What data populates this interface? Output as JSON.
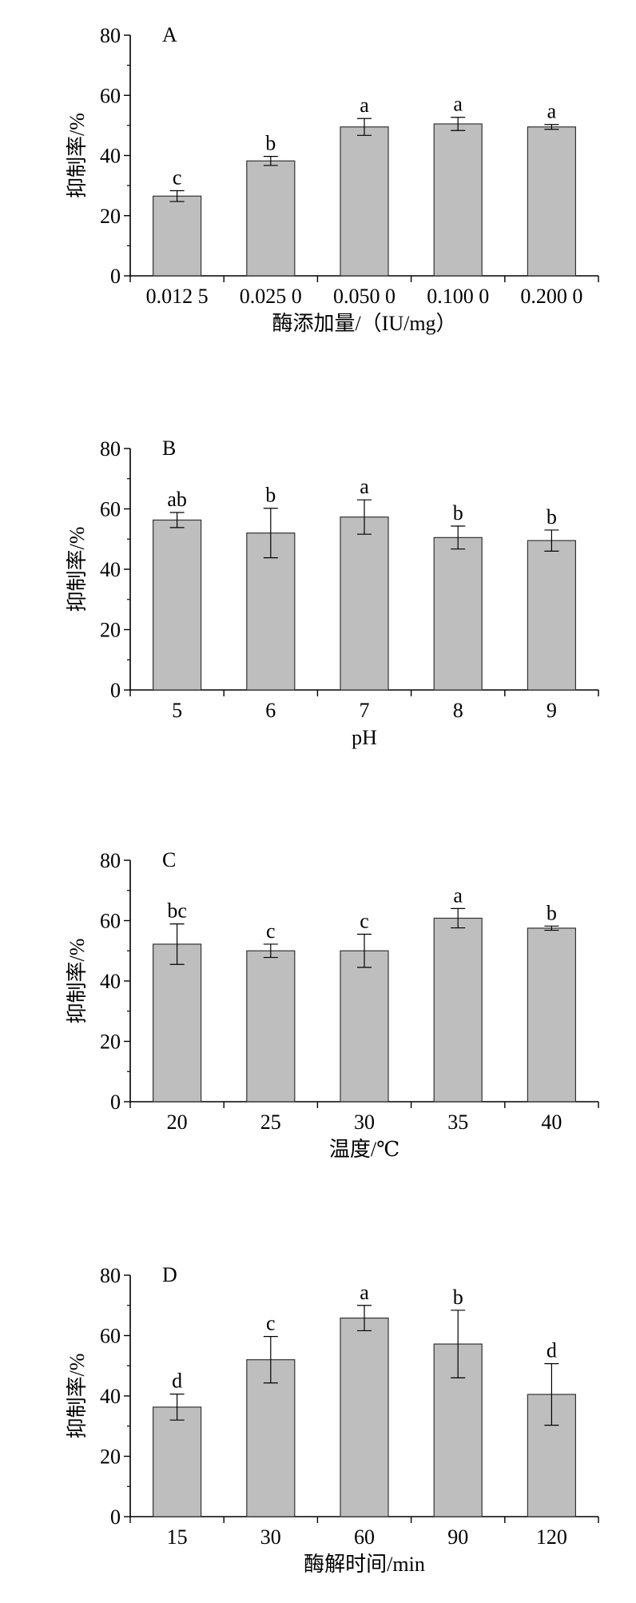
{
  "chart_data": [
    {
      "type": "bar",
      "panel_label": "A",
      "categories": [
        "0.012 5",
        "0.025 0",
        "0.050 0",
        "0.100 0",
        "0.200 0"
      ],
      "values": [
        26.5,
        38.2,
        49.5,
        50.5,
        49.5
      ],
      "errors": [
        1.8,
        1.5,
        2.8,
        2.2,
        0.8
      ],
      "letters": [
        "c",
        "b",
        "a",
        "a",
        "a"
      ],
      "xlabel": "酶添加量/（IU/mg）",
      "ylabel": "抑制率/%",
      "ylim": [
        0,
        80
      ],
      "yticks": [
        0,
        20,
        40,
        60,
        80
      ],
      "bar_color": "#bebebe",
      "grid": false
    },
    {
      "type": "bar",
      "panel_label": "B",
      "categories": [
        "5",
        "6",
        "7",
        "8",
        "9"
      ],
      "values": [
        56.3,
        52.0,
        57.3,
        50.5,
        49.5
      ],
      "errors": [
        2.5,
        8.2,
        5.7,
        3.8,
        3.5
      ],
      "letters": [
        "ab",
        "b",
        "a",
        "b",
        "b"
      ],
      "xlabel": "pH",
      "ylabel": "抑制率/%",
      "ylim": [
        0,
        80
      ],
      "yticks": [
        0,
        20,
        40,
        60,
        80
      ],
      "bar_color": "#bebebe",
      "grid": false
    },
    {
      "type": "bar",
      "panel_label": "C",
      "categories": [
        "20",
        "25",
        "30",
        "35",
        "40"
      ],
      "values": [
        52.2,
        50.0,
        50.0,
        60.8,
        57.5
      ],
      "errors": [
        6.7,
        2.2,
        5.5,
        3.2,
        0.7
      ],
      "letters": [
        "bc",
        "c",
        "c",
        "a",
        "b"
      ],
      "xlabel": "温度/℃",
      "ylabel": "抑制率/%",
      "ylim": [
        0,
        80
      ],
      "yticks": [
        0,
        20,
        40,
        60,
        80
      ],
      "bar_color": "#bebebe",
      "grid": false
    },
    {
      "type": "bar",
      "panel_label": "D",
      "categories": [
        "15",
        "30",
        "60",
        "90",
        "120"
      ],
      "values": [
        36.3,
        52.0,
        65.8,
        57.2,
        40.5
      ],
      "errors": [
        4.3,
        7.7,
        4.2,
        11.2,
        10.2
      ],
      "letters": [
        "d",
        "c",
        "a",
        "b",
        "d"
      ],
      "xlabel": "酶解时间/min",
      "ylabel": "抑制率/%",
      "ylim": [
        0,
        80
      ],
      "yticks": [
        0,
        20,
        40,
        60,
        80
      ],
      "bar_color": "#bebebe",
      "grid": false
    }
  ]
}
